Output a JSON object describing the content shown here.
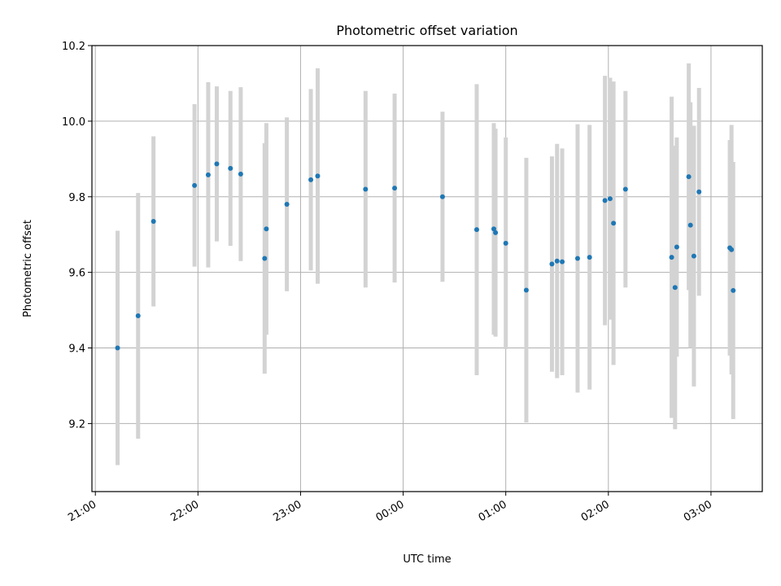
{
  "chart_data": {
    "type": "scatter",
    "title": "Photometric offset variation",
    "xlabel": "UTC time",
    "ylabel": "Photometric offset",
    "x_ticks": [
      "21:00",
      "22:00",
      "23:00",
      "00:00",
      "01:00",
      "02:00",
      "03:00"
    ],
    "y_ticks": [
      "9.2",
      "9.4",
      "9.6",
      "9.8",
      "10.0",
      "10.2"
    ],
    "xlim": [
      "20:58",
      "03:30"
    ],
    "ylim": [
      9.02,
      10.2
    ],
    "grid": true,
    "x_tick_rotation_deg": 30,
    "colors": {
      "points": "#1f77b4",
      "errorbars": "#d3d3d3",
      "grid": "#b0b0b0"
    },
    "series": [
      {
        "x": [
          "21:13",
          "21:25",
          "21:34",
          "21:58",
          "22:06",
          "22:11",
          "22:19",
          "22:25",
          "22:39",
          "22:40",
          "22:52",
          "23:06",
          "23:10",
          "23:38",
          "23:55",
          "00:23",
          "00:43",
          "00:53",
          "00:54",
          "01:00",
          "01:12",
          "01:27",
          "01:30",
          "01:33",
          "01:42",
          "01:49",
          "01:58",
          "02:01",
          "02:03",
          "02:10",
          "02:37",
          "02:39",
          "02:40",
          "02:47",
          "02:48",
          "02:50",
          "02:53",
          "03:11",
          "03:12",
          "03:13"
        ],
        "y": [
          9.4,
          9.485,
          9.735,
          9.83,
          9.858,
          9.887,
          9.875,
          9.86,
          9.637,
          9.715,
          9.78,
          9.845,
          9.855,
          9.82,
          9.823,
          9.8,
          9.713,
          9.715,
          9.705,
          9.677,
          9.553,
          9.622,
          9.63,
          9.628,
          9.637,
          9.64,
          9.79,
          9.795,
          9.73,
          9.82,
          9.64,
          9.56,
          9.667,
          9.853,
          9.725,
          9.643,
          9.813,
          9.665,
          9.66,
          9.552
        ],
        "err": [
          0.31,
          0.325,
          0.225,
          0.215,
          0.245,
          0.205,
          0.205,
          0.23,
          0.305,
          0.28,
          0.23,
          0.24,
          0.285,
          0.26,
          0.25,
          0.225,
          0.385,
          0.28,
          0.275,
          0.28,
          0.35,
          0.285,
          0.31,
          0.3,
          0.355,
          0.35,
          0.33,
          0.32,
          0.375,
          0.26,
          0.425,
          0.375,
          0.29,
          0.3,
          0.325,
          0.345,
          0.275,
          0.285,
          0.33,
          0.34
        ]
      }
    ]
  }
}
